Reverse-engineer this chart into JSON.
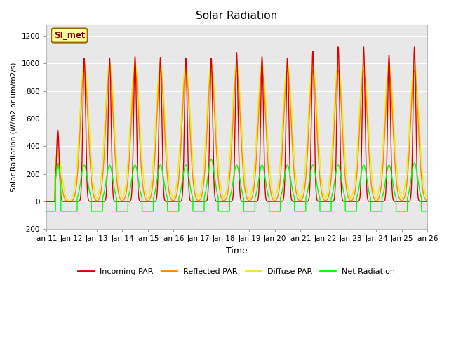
{
  "title": "Solar Radiation",
  "ylabel": "Solar Radiation (W/m2 or um/m2/s)",
  "xlabel": "Time",
  "ylim": [
    -200,
    1280
  ],
  "yticks": [
    -200,
    0,
    200,
    400,
    600,
    800,
    1000,
    1200
  ],
  "num_days": 15,
  "station_label": "SI_met",
  "colors": {
    "incoming": "#dd0000",
    "reflected": "#ff8800",
    "diffuse": "#eeee00",
    "net": "#00ff00",
    "plot_bg": "#e8e8e8",
    "grid": "#ffffff"
  },
  "legend": [
    "Incoming PAR",
    "Reflected PAR",
    "Diffuse PAR",
    "Net Radiation"
  ],
  "line_width": 1.0,
  "figsize": [
    6.4,
    4.8
  ],
  "dpi": 100
}
